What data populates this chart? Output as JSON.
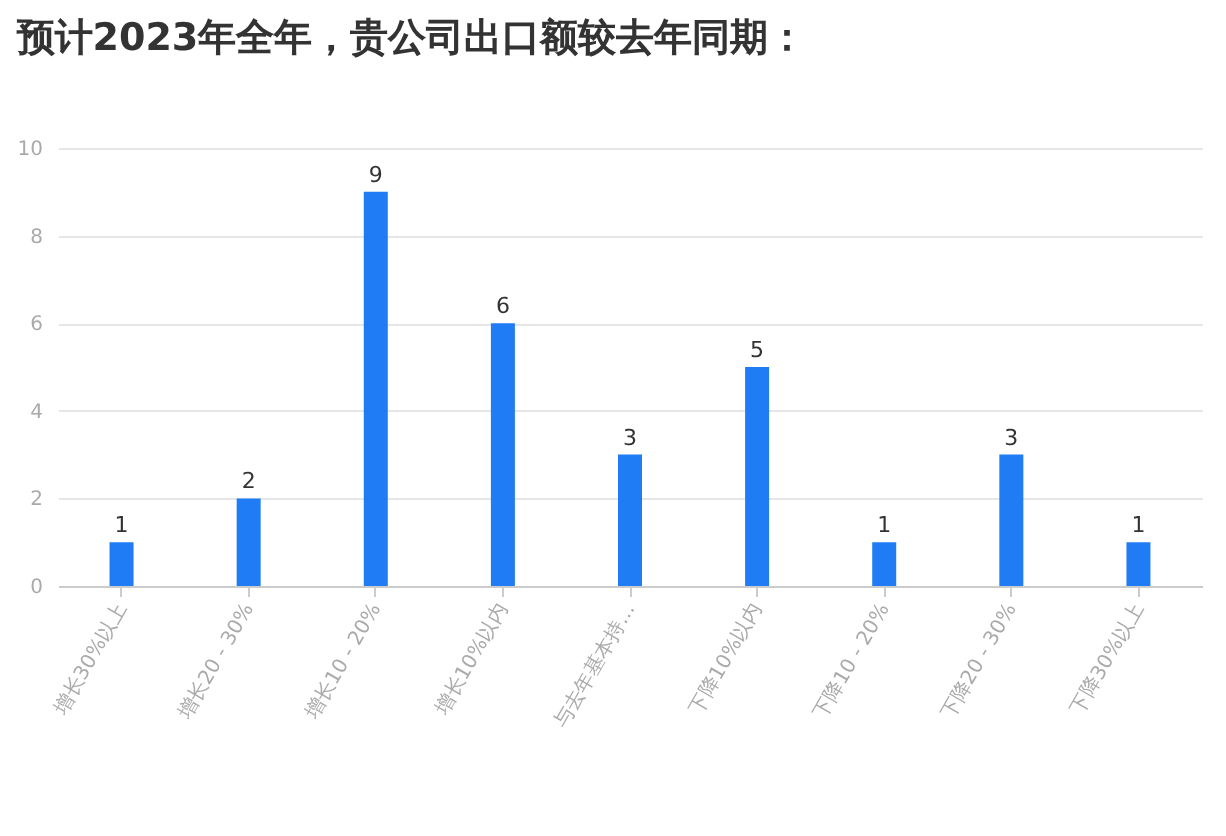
{
  "chart_data": {
    "type": "bar",
    "title": "预计2023年全年，贵公司出口额较去年同期：",
    "categories": [
      "增长30%以上",
      "增长20 - 30%",
      "增长10 - 20%",
      "增长10%以内",
      "与去年基本持…",
      "下降10%以内",
      "下降10 - 20%",
      "下降20 - 30%",
      "下降30%以上"
    ],
    "values": [
      1,
      2,
      9,
      6,
      3,
      5,
      1,
      3,
      1
    ],
    "color": "#1f7cf4",
    "ylim": [
      0,
      10
    ],
    "yticks": [
      0,
      2,
      4,
      6,
      8,
      10
    ],
    "grid": "y",
    "data_labels": true
  }
}
